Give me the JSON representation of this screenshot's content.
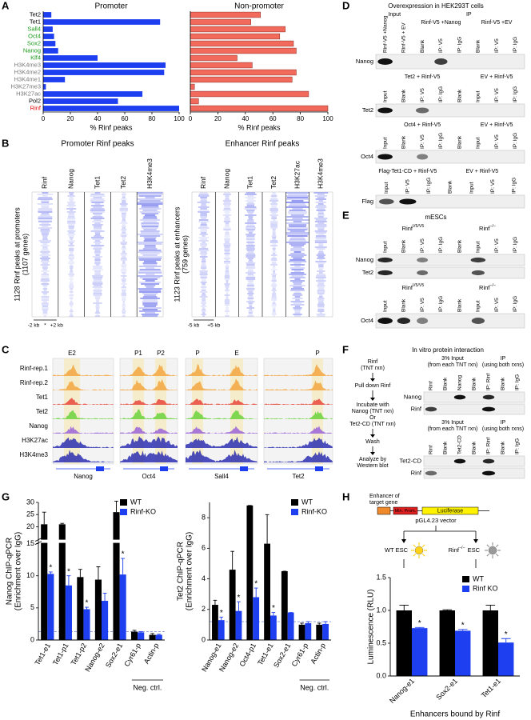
{
  "panel_labels": [
    "A",
    "B",
    "C",
    "D",
    "E",
    "F",
    "G",
    "H"
  ],
  "chart_data": [
    {
      "type": "barh",
      "title": "Promoter",
      "categories": [
        "Tet2",
        "Tet1",
        "Sall4",
        "Oct4",
        "Sox2",
        "Nanog",
        "Klf4",
        "H3K4me3",
        "H3K4me2",
        "H3K4me1",
        "H3K27me3",
        "H3K27ac",
        "Pol2",
        "Rinf"
      ],
      "label_colors": [
        "#000000",
        "#000000",
        "#1a9a1a",
        "#1a9a1a",
        "#1a9a1a",
        "#1a9a1a",
        "#1a9a1a",
        "#777777",
        "#777777",
        "#777777",
        "#777777",
        "#777777",
        "#000000",
        "#e00000"
      ],
      "values": [
        6,
        86,
        7,
        8,
        9,
        11,
        40,
        90,
        89,
        16,
        2,
        73,
        55,
        100
      ],
      "color": "#1e3ff0",
      "xlim": [
        0,
        100
      ],
      "xticks": [
        0,
        20,
        40,
        60,
        80,
        100
      ],
      "xlabel": "% Rinf peaks"
    },
    {
      "type": "barh",
      "title": "Non-promoter",
      "values": [
        51,
        44,
        69,
        65,
        75,
        77,
        34,
        45,
        77,
        74,
        3,
        86,
        6,
        100
      ],
      "color": "#f26a5b",
      "edge": "#8a2a20",
      "xlim": [
        0,
        100
      ],
      "xticks": [
        0,
        20,
        40,
        60,
        80,
        100
      ],
      "xlabel": "% Rinf peaks"
    },
    {
      "type": "bar",
      "ylabel": "Nanog ChIP-qPCR",
      "ylabel2": "(Enrichment over IgG)",
      "categories": [
        "Tet1-e1",
        "Tet1-p1",
        "Tet1-p2",
        "Nanog-e2",
        "Sox2-e1",
        "Cyr61-p",
        "Actin-p"
      ],
      "series": [
        {
          "name": "WT",
          "color": "#000000",
          "values": [
            21,
            21,
            9.8,
            9.4,
            26,
            1.3,
            0.8
          ],
          "errors": [
            5,
            0.4,
            1.2,
            2,
            4.5,
            0.2,
            0.2
          ]
        },
        {
          "name": "Rinf-KO",
          "color": "#1e3ff0",
          "values": [
            10.3,
            8.5,
            4.8,
            6.1,
            10.2,
            1.2,
            0.8
          ],
          "errors": [
            0.3,
            1.5,
            0.3,
            1.2,
            2.5,
            0.1,
            0.1
          ],
          "star_labels": [
            "*",
            "*",
            "*",
            null,
            "*",
            null,
            null
          ]
        }
      ],
      "ylim": [
        0,
        30
      ],
      "ybreak": 15,
      "yticks": [
        0,
        5,
        10,
        15,
        20,
        25,
        30
      ],
      "hline": 1.3,
      "group_label": "Neg. ctrl."
    },
    {
      "type": "bar",
      "ylabel": "Tet2 ChIP-qPCR",
      "ylabel2": "(Enrichment over IgG)",
      "categories": [
        "Nanog-e1",
        "Nanog-e2",
        "Oct4-p1",
        "Tet1-e1",
        "Sox2-e1",
        "Cyr61-p",
        "Actin-p"
      ],
      "series": [
        {
          "name": "WT",
          "color": "#000000",
          "values": [
            2.3,
            4.6,
            8.8,
            6.3,
            4.5,
            1.0,
            1.0
          ],
          "errors": [
            0.3,
            1.2,
            0,
            1.9,
            0,
            0.1,
            0.1
          ]
        },
        {
          "name": "Rinf-KO",
          "color": "#1e3ff0",
          "values": [
            1.3,
            1.9,
            2.8,
            1.6,
            1.8,
            1.1,
            1.05
          ],
          "errors": [
            0.2,
            0.6,
            0.6,
            0.2,
            0,
            0.1,
            0.15
          ],
          "star_labels": [
            "*",
            "*",
            "*",
            "*",
            null,
            null,
            null
          ]
        }
      ],
      "ylim": [
        0,
        9
      ],
      "yticks": [
        0,
        2,
        4,
        6,
        8
      ],
      "hline": 1.2,
      "group_label": "Neg. ctrl."
    },
    {
      "type": "bar",
      "ylabel": "Luminescence (RLU)",
      "xlabel": "Enhancers bound by Rinf",
      "categories": [
        "Nanog-e1",
        "Sox2-e1",
        "Tet1-e1"
      ],
      "series": [
        {
          "name": "WT",
          "color": "#000000",
          "values": [
            1.0,
            1.0,
            1.0
          ],
          "errors": [
            0.08,
            0.01,
            0.08
          ]
        },
        {
          "name": "Rinf KO",
          "color": "#1e3ff0",
          "values": [
            0.73,
            0.69,
            0.51
          ],
          "errors": [
            0.01,
            0.02,
            0.06
          ],
          "star_labels": [
            "*",
            "*",
            "*"
          ]
        }
      ],
      "ylim": [
        0,
        1.5
      ],
      "yticks": [
        {
          "value": 0,
          "label": "0.0"
        },
        0.5,
        {
          "value": 1,
          "label": "1.0"
        },
        1.5
      ]
    }
  ],
  "B": {
    "left": {
      "title": "Promoter Rinf peaks",
      "columns": [
        "Rinf",
        "Nanog",
        "Tet1",
        "Tet2",
        "H3K4me3"
      ],
      "ylabel": [
        "1128 Rinf peaks at promoters",
        "(1107 genes)"
      ],
      "scale": [
        "-2 kb",
        "*",
        "+2 kb"
      ]
    },
    "right": {
      "title": "Enhancer Rinf peaks",
      "columns": [
        "Rinf",
        "Nanog",
        "Tet1",
        "Tet2",
        "H3K27ac",
        "H3K4me3"
      ],
      "ylabel": [
        "1123 Rinf peaks at enhancers",
        "(759 genes)"
      ],
      "scale": [
        "-5 kb",
        "+5 kb"
      ]
    }
  },
  "C": {
    "tracks": [
      "Rinf-rep.1",
      "Rinf-rep.2",
      "Tet1",
      "Tet2",
      "Nanog",
      "H3K27ac",
      "H3K4me3"
    ],
    "regions": [
      "E2",
      "P1",
      "P2",
      "P",
      "E",
      "P"
    ],
    "genes": [
      "Nanog",
      "Oct4",
      "Sall4",
      "Tet2"
    ]
  },
  "D": {
    "title": "Overexpression in HEK293T cells",
    "blots": [
      {
        "headers": [
          "Input",
          "IP",
          "Rinf-V5 +Nanog",
          "Rinf-V5 +EV"
        ],
        "lanes": [
          "Rinf-V5 +Nanog",
          "Rinf-V5 + EV",
          "Blank",
          "IP: V5",
          "IP: IgG",
          "Blank",
          "IP: V5",
          "IP: IgG"
        ],
        "rows": [
          "Nanog"
        ]
      },
      {
        "headers": [
          "Tet2 + Rinf-V5",
          "EV + Rinf-V5"
        ],
        "lanes": [
          "Input",
          "Blank",
          "IP: V5",
          "IP: IgG",
          "Blank",
          "Input",
          "IP: V5",
          "IP: IgG"
        ],
        "rows": [
          "Tet2"
        ]
      },
      {
        "headers": [
          "Oct4 + Rinf-V5",
          "EV + Rinf-V5"
        ],
        "lanes": [
          "Input",
          "Blank",
          "IP: V5",
          "IP: IgG",
          "Blank",
          "Input",
          "IP: V5",
          "IP: IgG"
        ],
        "rows": [
          "Oct4"
        ]
      },
      {
        "headers": [
          "Flag-Tet1-CD + Rinf-V5",
          "EV + Rinf-V5"
        ],
        "lanes": [
          "Input",
          "IP: V5",
          "IP: IgG",
          "Blank",
          "Input",
          "IP: V5",
          "IP: IgG"
        ],
        "rows": [
          "Flag"
        ]
      }
    ]
  },
  "E": {
    "title": "mESCs",
    "blots": [
      {
        "headers": [
          {
            "name": "Rinf",
            "sup": "V5/V5"
          },
          {
            "name": "Rinf",
            "sup": "−/−"
          }
        ],
        "lanes": [
          "Input",
          "Blank",
          "IP: V5",
          "IP: IgG",
          "Blank",
          "Input",
          "IP: V5",
          "IP: IgG"
        ],
        "rows": [
          "Nanog",
          "Tet2"
        ]
      },
      {
        "headers": [
          {
            "name": "Rinf",
            "sup": "V5/V5"
          },
          {
            "name": "Rinf",
            "sup": "−/−"
          }
        ],
        "lanes": [
          "Input",
          "Blank",
          "IP: V5",
          "IP: IgG",
          "Blank",
          "Input",
          "IP: V5",
          "IP: IgG"
        ],
        "rows": [
          "Oct4"
        ]
      }
    ]
  },
  "F": {
    "title": "In vitro protein interaction",
    "steps": [
      [
        "Rinf",
        "(TNT rxn)"
      ],
      [
        "Pull down Rinf"
      ],
      [
        "Incubate with",
        "Nanog (TNT rxn)",
        "Or",
        "Tet2-CD (TNT rxn)"
      ],
      [
        "Wash"
      ],
      [
        "Analyze by",
        "Western blot"
      ]
    ],
    "blots": [
      {
        "headers": [
          "3% Input",
          "(from each TNT rxn)",
          "IP",
          "(using both rxns)"
        ],
        "lanes": [
          "Rinf",
          "Blank",
          "Nanog",
          "Blank",
          "IP: Rinf",
          "Blank",
          "IP: IgG"
        ],
        "rows": [
          "Nanog",
          "Rinf"
        ]
      },
      {
        "headers": [
          "3% Input",
          "(from each TNT rxn)",
          "IP",
          "(using both rxns)"
        ],
        "lanes": [
          "Rinf",
          "Blank",
          "Tet2-CD",
          "Blank",
          "IP: Rinf",
          "Blank",
          "IP: IgG"
        ],
        "rows": [
          "Tet2-CD",
          "Rinf"
        ]
      }
    ]
  },
  "H": {
    "enhancer": [
      "Enhancer of",
      "target gene"
    ],
    "min_prom": "Min. Prom.",
    "luciferase": "Luciferase",
    "vector": "pGL4.23 vector",
    "wt": "WT ESC",
    "ko": {
      "name": "Rinf",
      "sup": "−/−",
      "rest": "ESC"
    }
  }
}
